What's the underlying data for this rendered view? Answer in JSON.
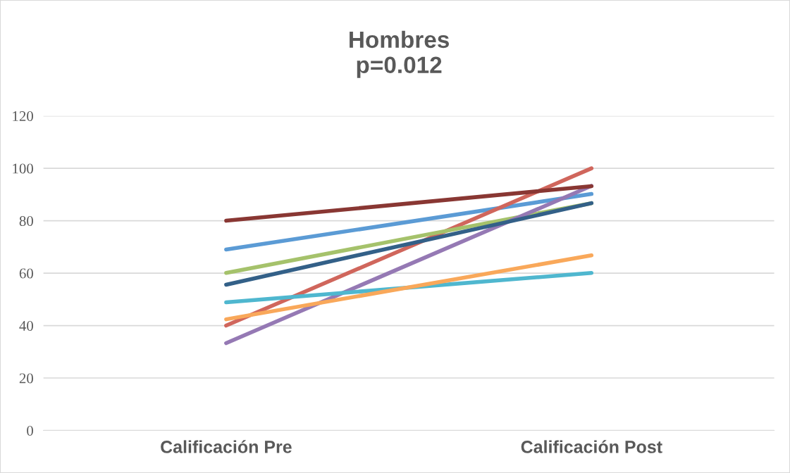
{
  "chart_data": {
    "type": "line",
    "title": "Hombres\np=0.012",
    "categories": [
      "Calificación Pre",
      "Calificación Post"
    ],
    "series": [
      {
        "color": "#5b9bd5",
        "values": [
          69.0,
          90.2
        ]
      },
      {
        "color": "#d0665c",
        "values": [
          40.0,
          100.0
        ]
      },
      {
        "color": "#a5c26b",
        "values": [
          60.1,
          86.7
        ]
      },
      {
        "color": "#9579b4",
        "values": [
          33.3,
          93.3
        ]
      },
      {
        "color": "#4fb7cf",
        "values": [
          48.9,
          60.1
        ]
      },
      {
        "color": "#f9a85a",
        "values": [
          42.4,
          66.8
        ]
      },
      {
        "color": "#336088",
        "values": [
          55.6,
          86.7
        ]
      },
      {
        "color": "#893733",
        "values": [
          80.0,
          93.2
        ]
      }
    ],
    "ylim": [
      0,
      120
    ],
    "yticks": [
      0,
      20,
      40,
      60,
      80,
      100,
      120
    ],
    "grid": "y",
    "legend": false,
    "marker": "none",
    "line_style": "solid"
  }
}
